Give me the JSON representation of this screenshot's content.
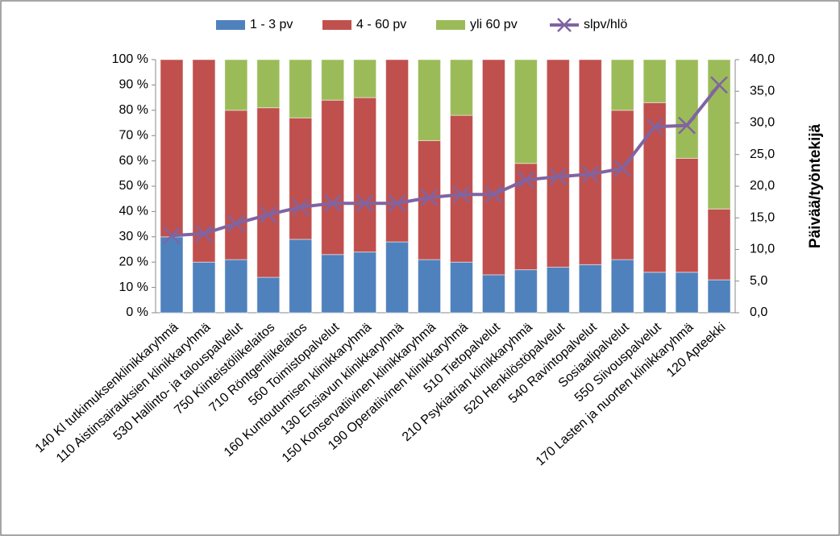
{
  "chart_data": {
    "type": "bar",
    "stacked": true,
    "categories": [
      "140 Kl tutkimuksenklinikkaryhmä",
      "110 Aistinsairauksien klinikkaryhmä",
      "530 Hallinto- ja talouspalvelut",
      "750 Kiinteistöliikelaitos",
      "710 Röntgenliikelaitos",
      "560 Toimistopalvelut",
      "160 Kuntoutumisen klinikkaryhmä",
      "130 Ensiavun klinikkaryhmä",
      "150 Konservatiivinen klinikkaryhmä",
      "190 Operatiivinen klinikkaryhmä",
      "510 Tietopalvelut",
      "210 Psykiatrian klinikkaryhmä",
      "520 Henkilöstöpalvelut",
      "540 Ravintopalvelut",
      "Sosiaalipalvelut",
      "550 Siivouspalvelut",
      "170 Lasten ja nuorten klinikkaryhmä",
      "120 Apteekki"
    ],
    "series": [
      {
        "name": "1 - 3 pv",
        "color": "#4f81bd",
        "values": [
          30,
          20,
          21,
          14,
          29,
          23,
          24,
          28,
          21,
          20,
          15,
          17,
          18,
          19,
          21,
          16,
          16,
          13
        ]
      },
      {
        "name": "4 - 60 pv",
        "color": "#c0504d",
        "values": [
          70,
          80,
          59,
          67,
          48,
          61,
          61,
          72,
          47,
          58,
          85,
          42,
          82,
          81,
          59,
          67,
          45,
          28
        ]
      },
      {
        "name": "yli 60 pv",
        "color": "#9bbb59",
        "values": [
          0,
          0,
          20,
          19,
          23,
          16,
          15,
          0,
          32,
          22,
          0,
          41,
          0,
          0,
          20,
          17,
          39,
          59
        ]
      },
      {
        "name": "slpv/hlö",
        "color": "#8064a2",
        "type": "line",
        "axis": "y2",
        "values": [
          12.2,
          12.5,
          14.1,
          15.5,
          16.7,
          17.3,
          17.3,
          17.3,
          18.2,
          18.7,
          18.7,
          21.0,
          21.5,
          21.9,
          22.8,
          29.4,
          29.6,
          36.0
        ]
      }
    ],
    "ylim": [
      0,
      100
    ],
    "yticks": [
      {
        "value": 0,
        "label": "0 %"
      },
      {
        "value": 10,
        "label": "10 %"
      },
      {
        "value": 20,
        "label": "20 %"
      },
      {
        "value": 30,
        "label": "30 %"
      },
      {
        "value": 40,
        "label": "40 %"
      },
      {
        "value": 50,
        "label": "50 %"
      },
      {
        "value": 60,
        "label": "60 %"
      },
      {
        "value": 70,
        "label": "70 %"
      },
      {
        "value": 80,
        "label": "80 %"
      },
      {
        "value": 90,
        "label": "90 %"
      },
      {
        "value": 100,
        "label": "100 %"
      }
    ],
    "y2lim": [
      0,
      40
    ],
    "y2ticks": [
      {
        "value": 0,
        "label": "0,0"
      },
      {
        "value": 5,
        "label": "5,0"
      },
      {
        "value": 10,
        "label": "10,0"
      },
      {
        "value": 15,
        "label": "15,0"
      },
      {
        "value": 20,
        "label": "20,0"
      },
      {
        "value": 25,
        "label": "25,0"
      },
      {
        "value": 30,
        "label": "30,0"
      },
      {
        "value": 35,
        "label": "35,0"
      },
      {
        "value": 40,
        "label": "40,0"
      }
    ],
    "y2label": "Päivää/työntekijä",
    "legend": "top"
  }
}
